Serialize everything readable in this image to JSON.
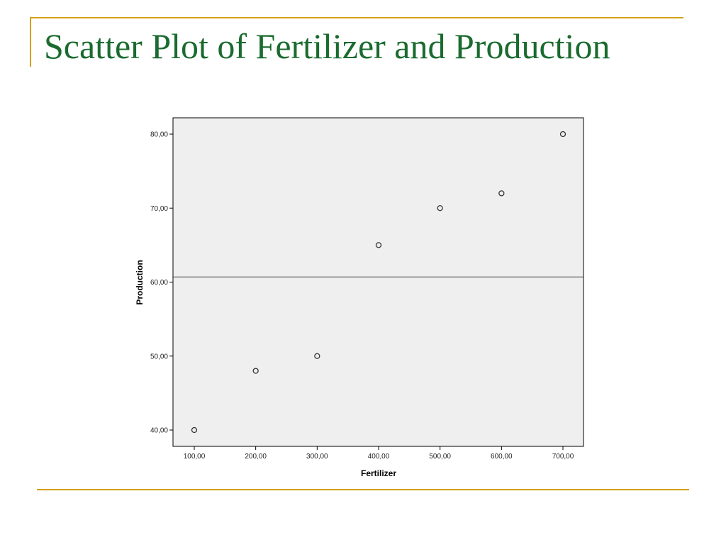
{
  "slide": {
    "title": "Scatter Plot of Fertilizer and Production"
  },
  "colors": {
    "title": "#1a6b2f",
    "accent": "#d4a017",
    "plot_background": "#efefef",
    "marker_stroke": "#333333"
  },
  "chart_data": {
    "type": "scatter",
    "title": "",
    "xlabel": "Fertilizer",
    "ylabel": "Production",
    "xlim": [
      100,
      700
    ],
    "ylim": [
      40,
      80
    ],
    "x_ticks": [
      100,
      200,
      300,
      400,
      500,
      600,
      700
    ],
    "y_ticks": [
      40,
      50,
      60,
      70,
      80
    ],
    "x_tick_labels": [
      "100,00",
      "200,00",
      "300,00",
      "400,00",
      "500,00",
      "600,00",
      "700,00"
    ],
    "y_tick_labels": [
      "40,00",
      "50,00",
      "60,00",
      "70,00",
      "80,00"
    ],
    "grid": false,
    "reference_line_y": 60.7,
    "marker": "open-circle",
    "series": [
      {
        "x": [
          100,
          200,
          300,
          400,
          500,
          600,
          700
        ],
        "y": [
          40,
          48,
          50,
          65,
          70,
          72,
          80
        ]
      }
    ]
  }
}
